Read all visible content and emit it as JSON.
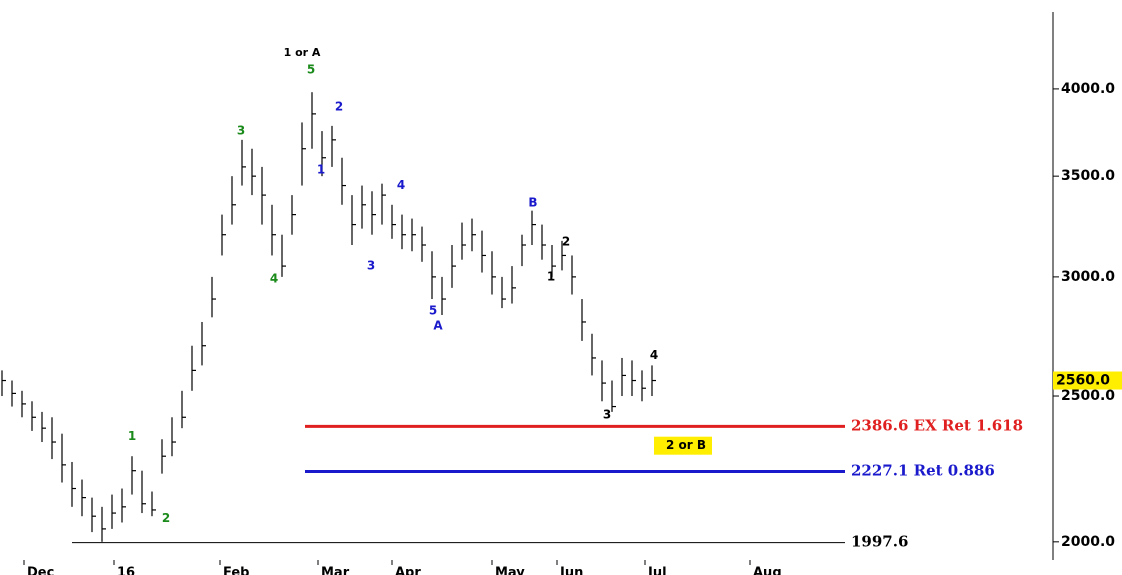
{
  "chart_data": {
    "type": "ohlc",
    "log_scale": true,
    "x": [
      0,
      2,
      4,
      6,
      8,
      10,
      12,
      14,
      16,
      18,
      20,
      22,
      24,
      26,
      28,
      30,
      32,
      34,
      36,
      38,
      40,
      42,
      44,
      46,
      48,
      50,
      52,
      54,
      56,
      58,
      60,
      62,
      64,
      66,
      68,
      70,
      72,
      74,
      76,
      78,
      80,
      82,
      84,
      86,
      88,
      90,
      92,
      94,
      96,
      98,
      100,
      102,
      104,
      106,
      108,
      110,
      112,
      114,
      116,
      118,
      120,
      122,
      124,
      126,
      128,
      130
    ],
    "high": [
      2600,
      2560,
      2520,
      2480,
      2440,
      2420,
      2360,
      2260,
      2200,
      2140,
      2110,
      2150,
      2170,
      2280,
      2230,
      2160,
      2340,
      2420,
      2520,
      2700,
      2800,
      3000,
      3300,
      3500,
      3700,
      3650,
      3550,
      3350,
      3200,
      3400,
      3800,
      3980,
      3750,
      3780,
      3600,
      3400,
      3450,
      3420,
      3460,
      3350,
      3300,
      3280,
      3240,
      3120,
      3000,
      3150,
      3260,
      3280,
      3220,
      3120,
      3000,
      3050,
      3200,
      3320,
      3250,
      3150,
      3170,
      3100,
      2900,
      2750,
      2640,
      2560,
      2650,
      2640,
      2600,
      2620
    ],
    "low": [
      2500,
      2460,
      2420,
      2370,
      2330,
      2270,
      2190,
      2110,
      2080,
      2030,
      2000,
      2040,
      2060,
      2150,
      2090,
      2080,
      2220,
      2280,
      2380,
      2520,
      2620,
      2820,
      3100,
      3250,
      3450,
      3400,
      3250,
      3100,
      3000,
      3200,
      3450,
      3650,
      3500,
      3550,
      3350,
      3150,
      3230,
      3200,
      3250,
      3180,
      3130,
      3120,
      3070,
      2900,
      2830,
      2950,
      3080,
      3120,
      3020,
      2920,
      2860,
      2880,
      3050,
      3150,
      3080,
      3000,
      3030,
      2920,
      2720,
      2580,
      2480,
      2440,
      2500,
      2500,
      2480,
      2500
    ],
    "close": [
      2560,
      2510,
      2470,
      2420,
      2380,
      2330,
      2250,
      2170,
      2140,
      2080,
      2040,
      2090,
      2110,
      2230,
      2120,
      2100,
      2280,
      2330,
      2420,
      2600,
      2700,
      2900,
      3200,
      3350,
      3550,
      3500,
      3400,
      3200,
      3050,
      3300,
      3650,
      3850,
      3600,
      3700,
      3450,
      3250,
      3350,
      3300,
      3400,
      3250,
      3200,
      3200,
      3150,
      3000,
      2900,
      3050,
      3150,
      3200,
      3100,
      3000,
      2900,
      2950,
      3150,
      3250,
      3150,
      3050,
      3100,
      3000,
      2800,
      2650,
      2550,
      2460,
      2580,
      2560,
      2530,
      2560
    ],
    "xlim": [
      0,
      210
    ],
    "xticks": [
      {
        "value": 4.4,
        "label": "Dec"
      },
      {
        "value": 22.4,
        "label": "16"
      },
      {
        "value": 43.6,
        "label": "Feb"
      },
      {
        "value": 63.2,
        "label": "Mar"
      },
      {
        "value": 78,
        "label": "Apr"
      },
      {
        "value": 98,
        "label": "May"
      },
      {
        "value": 111,
        "label": "Jun"
      },
      {
        "value": 128.6,
        "label": "Jul"
      },
      {
        "value": 149.6,
        "label": "Aug"
      }
    ],
    "ylim": [
      1901,
      4583
    ],
    "yticks": [
      {
        "value": 2000,
        "label": "2000.0"
      },
      {
        "value": 2500,
        "label": "2500.0"
      },
      {
        "value": 3000,
        "label": "3000.0"
      },
      {
        "value": 3500,
        "label": "3500.0"
      },
      {
        "value": 4000,
        "label": "4000.0"
      }
    ],
    "last_price": {
      "value": 2560,
      "label": "2560.0"
    },
    "levels": [
      {
        "value": 2386.6,
        "label": "2386.6 EX Ret 1.618",
        "color": "#e02020",
        "from": 60.6,
        "to": 168.6
      },
      {
        "value": 2227.1,
        "label": "2227.1 Ret 0.886",
        "color": "#1a1acc",
        "from": 60.6,
        "to": 168.6
      },
      {
        "value": 1997.6,
        "label": "1997.6",
        "color": "#000000",
        "from": 14,
        "to": 168.6
      }
    ],
    "annotations": [
      {
        "text": "1 or A",
        "x": 60,
        "y": 4226,
        "color": "#000000"
      },
      {
        "text": "5",
        "x": 61.8,
        "y": 4118,
        "color": "#1a8a1a"
      },
      {
        "text": "2",
        "x": 67.4,
        "y": 3891,
        "color": "#1a1acc"
      },
      {
        "text": "3",
        "x": 47.8,
        "y": 3751,
        "color": "#1a8a1a"
      },
      {
        "text": "1",
        "x": 63.8,
        "y": 3534,
        "color": "#1a1acc"
      },
      {
        "text": "4",
        "x": 79.8,
        "y": 3449,
        "color": "#1a1acc"
      },
      {
        "text": "3",
        "x": 73.8,
        "y": 3050,
        "color": "#1a1acc"
      },
      {
        "text": "4",
        "x": 54.4,
        "y": 2990,
        "color": "#1a8a1a"
      },
      {
        "text": "B",
        "x": 106.2,
        "y": 3360,
        "color": "#1a1acc"
      },
      {
        "text": "2",
        "x": 112.8,
        "y": 3164,
        "color": "#000000"
      },
      {
        "text": "1",
        "x": 109.8,
        "y": 3000,
        "color": "#000000"
      },
      {
        "text": "5",
        "x": 86.2,
        "y": 2847,
        "color": "#1a1acc"
      },
      {
        "text": "A",
        "x": 87.2,
        "y": 2782,
        "color": "#1a1acc"
      },
      {
        "text": "4",
        "x": 130.4,
        "y": 2659,
        "color": "#000000"
      },
      {
        "text": "3",
        "x": 121,
        "y": 2429,
        "color": "#000000"
      },
      {
        "text": "1",
        "x": 26,
        "y": 2349,
        "color": "#1a8a1a"
      },
      {
        "text": "2",
        "x": 32.8,
        "y": 2072,
        "color": "#1a8a1a"
      },
      {
        "text": "2 or B",
        "x": 136.8,
        "y": 2317,
        "color": "#000000",
        "highlight": "#ffee00"
      }
    ],
    "highlight_color": "#ffee00"
  }
}
